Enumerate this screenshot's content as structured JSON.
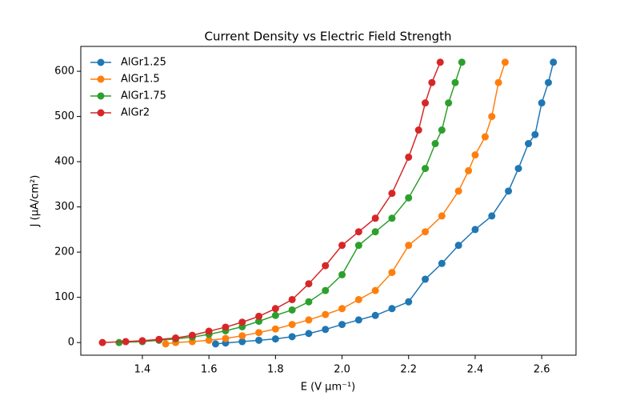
{
  "chart_data": {
    "type": "line",
    "title": "Current Density vs Electric Field Strength",
    "xlabel": "E (V μm⁻¹)",
    "ylabel": "J (μA/cm²)",
    "xlim": [
      1.215,
      2.703
    ],
    "ylim": [
      -28,
      655
    ],
    "xticks": [
      1.4,
      1.6,
      1.8,
      {
        "value": 2,
        "label": "2.0"
      },
      2.2,
      2.4,
      2.6
    ],
    "yticks": [
      0,
      100,
      200,
      300,
      400,
      500,
      600
    ],
    "legend": "upper left",
    "series": [
      {
        "name": "AlGr1.25",
        "color": "#1f77b4",
        "x": [
          1.62,
          1.65,
          1.7,
          1.75,
          1.8,
          1.85,
          1.9,
          1.95,
          2.0,
          2.05,
          2.1,
          2.15,
          2.2,
          2.25,
          2.3,
          2.35,
          2.4,
          2.45,
          2.5,
          2.53,
          2.56,
          2.58,
          2.6,
          2.62,
          2.635
        ],
        "values": [
          -3,
          -1,
          2,
          5,
          8,
          13,
          20,
          29,
          40,
          50,
          60,
          75,
          90,
          140,
          175,
          215,
          250,
          280,
          335,
          385,
          440,
          460,
          530,
          575,
          620
        ]
      },
      {
        "name": "AlGr1.5",
        "color": "#ff7f0e",
        "x": [
          1.47,
          1.5,
          1.55,
          1.6,
          1.65,
          1.7,
          1.75,
          1.8,
          1.85,
          1.9,
          1.95,
          2.0,
          2.05,
          2.1,
          2.15,
          2.2,
          2.25,
          2.3,
          2.35,
          2.38,
          2.4,
          2.43,
          2.45,
          2.47,
          2.49
        ],
        "values": [
          -3,
          0,
          2,
          5,
          9,
          15,
          22,
          30,
          40,
          50,
          62,
          75,
          95,
          115,
          155,
          215,
          245,
          280,
          335,
          380,
          415,
          455,
          500,
          575,
          620
        ]
      },
      {
        "name": "AlGr1.75",
        "color": "#2ca02c",
        "x": [
          1.33,
          1.4,
          1.45,
          1.5,
          1.55,
          1.6,
          1.65,
          1.7,
          1.75,
          1.8,
          1.85,
          1.9,
          1.95,
          2.0,
          2.05,
          2.1,
          2.15,
          2.2,
          2.25,
          2.28,
          2.3,
          2.32,
          2.34,
          2.36
        ],
        "values": [
          0,
          2,
          5,
          8,
          12,
          18,
          26,
          35,
          47,
          60,
          72,
          90,
          115,
          150,
          215,
          245,
          275,
          320,
          385,
          440,
          470,
          530,
          575,
          620
        ]
      },
      {
        "name": "AlGr2",
        "color": "#d62728",
        "x": [
          1.28,
          1.35,
          1.4,
          1.45,
          1.5,
          1.55,
          1.6,
          1.65,
          1.7,
          1.75,
          1.8,
          1.85,
          1.9,
          1.95,
          2.0,
          2.05,
          2.1,
          2.15,
          2.2,
          2.23,
          2.25,
          2.27,
          2.295
        ],
        "values": [
          0,
          2,
          4,
          7,
          10,
          16,
          25,
          34,
          45,
          58,
          75,
          95,
          130,
          170,
          215,
          245,
          275,
          330,
          410,
          470,
          530,
          575,
          620
        ]
      }
    ]
  }
}
